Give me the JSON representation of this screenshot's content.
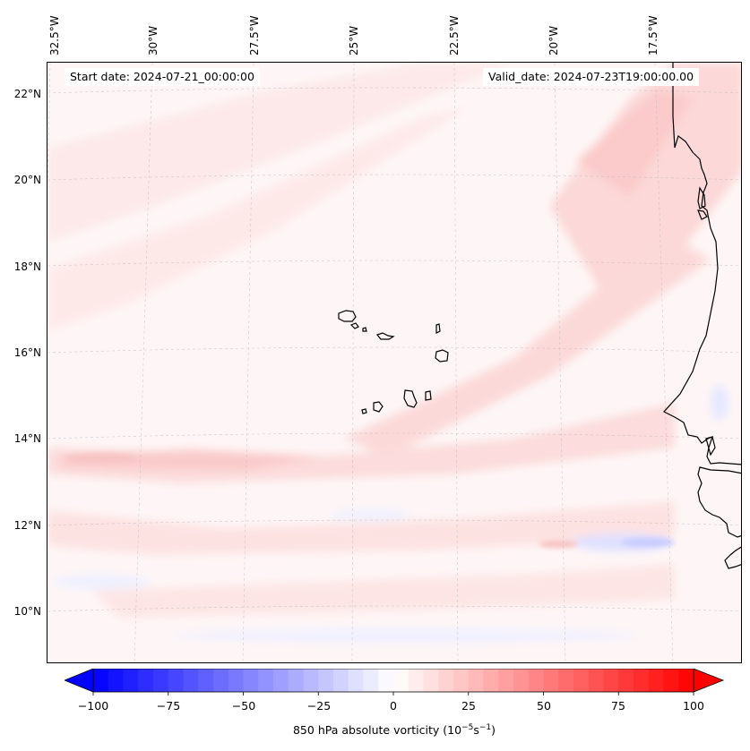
{
  "map": {
    "start_label": "Start date: 2024-07-21_00:00:00",
    "valid_label": "Valid_date: 2024-07-23T19:00:00.00",
    "longitude_labels": [
      "32.5°W",
      "30°W",
      "27.5°W",
      "25°W",
      "22.5°W",
      "20°W",
      "17.5°W"
    ],
    "latitude_labels": [
      "22°N",
      "20°N",
      "18°N",
      "16°N",
      "14°N",
      "12°N",
      "10°N"
    ],
    "field": "850 hPa absolute vorticity",
    "colors": {
      "positive": "#ff0000",
      "negative": "#0000ff",
      "neutral": "#ffffff",
      "coastline": "#000000"
    }
  },
  "colorbar": {
    "title_prefix": "850 hPa absolute vorticity (10",
    "title_exp1": "−5",
    "title_mid": "s",
    "title_exp2": "−1",
    "title_suffix": ")",
    "min": -100,
    "max": 100,
    "ticks": [
      "−100",
      "−75",
      "−50",
      "−25",
      "0",
      "25",
      "50",
      "75",
      "100"
    ],
    "extend": "both"
  }
}
